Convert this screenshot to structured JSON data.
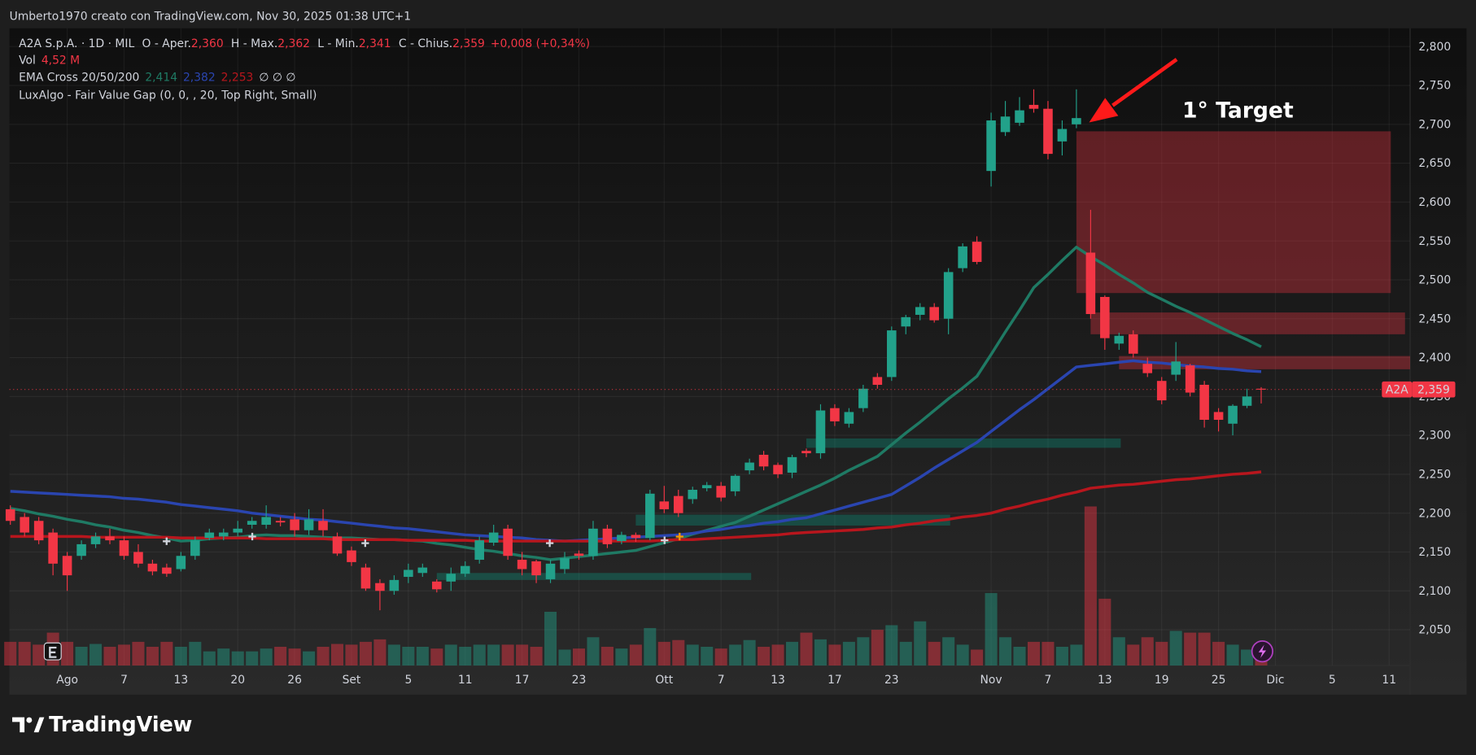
{
  "attribution": "Umberto1970 creato con TradingView.com, Nov 30, 2025 01:38 UTC+1",
  "brand": "TradingView",
  "legend": {
    "symbol": "A2A S.p.A. · 1D · MIL",
    "ohlc": [
      {
        "label": "O - Aper.",
        "value": "2,360"
      },
      {
        "label": "H - Max.",
        "value": "2,362"
      },
      {
        "label": "L - Min.",
        "value": "2,341"
      },
      {
        "label": "C - Chius.",
        "value": "2,359"
      }
    ],
    "change": "+0,008 (+0,34%)",
    "volume_label": "Vol",
    "volume_value": "4,52 M",
    "ema_name": "EMA Cross 20/50/200",
    "ema_values": [
      "2,414",
      "2,382",
      "2,253"
    ],
    "ema_extra": "∅ ∅ ∅",
    "indicator": "LuxAlgo - Fair Value Gap (0, 0, , 20, Top Right, Small)"
  },
  "annotation": "1° Target",
  "price_label": {
    "symbol": "A2A",
    "value": "2,359"
  },
  "chart_data": {
    "type": "candlestick",
    "up_color": "#22a18a",
    "down_color": "#f23645",
    "categories": [
      null,
      null,
      null,
      null,
      "Ago",
      null,
      null,
      null,
      "7",
      null,
      null,
      null,
      "13",
      null,
      null,
      null,
      "20",
      null,
      null,
      null,
      "26",
      null,
      null,
      null,
      "Set",
      null,
      null,
      null,
      "5",
      null,
      null,
      null,
      "11",
      null,
      null,
      null,
      "17",
      null,
      null,
      null,
      "23",
      null,
      null,
      null,
      null,
      null,
      "Ott",
      null,
      null,
      null,
      "7",
      null,
      null,
      null,
      "13",
      null,
      null,
      null,
      "17",
      null,
      null,
      null,
      "23",
      null,
      null,
      null,
      null,
      null,
      null,
      "Nov",
      null,
      null,
      null,
      "7",
      null,
      null,
      null,
      "13",
      null,
      null,
      null,
      "19",
      null,
      null,
      null,
      "25",
      null,
      null,
      null,
      "Dic",
      null,
      null,
      null,
      "5",
      null,
      null,
      null,
      "11",
      null
    ],
    "open": [
      2.205,
      2.195,
      2.19,
      2.175,
      2.145,
      2.145,
      2.16,
      2.17,
      2.165,
      2.15,
      2.135,
      2.13,
      2.128,
      2.145,
      2.168,
      2.17,
      2.175,
      2.185,
      2.185,
      2.19,
      2.192,
      2.178,
      2.19,
      2.17,
      2.152,
      2.13,
      2.11,
      2.1,
      2.118,
      2.123,
      2.112,
      2.112,
      2.122,
      2.14,
      2.162,
      2.18,
      2.14,
      2.138,
      2.115,
      2.128,
      2.148,
      2.145,
      2.18,
      2.164,
      2.172,
      2.168,
      2.215,
      2.222,
      2.218,
      2.232,
      2.235,
      2.228,
      2.255,
      2.275,
      2.262,
      2.252,
      2.28,
      2.277,
      2.335,
      2.315,
      2.335,
      2.375,
      2.375,
      2.44,
      2.455,
      2.465,
      2.45,
      2.515,
      2.549,
      2.64,
      2.69,
      2.702,
      2.725,
      2.72,
      2.678,
      2.7,
      2.535,
      2.478,
      2.418,
      2.43,
      2.392,
      2.37,
      2.378,
      2.39,
      2.365,
      2.33,
      2.315,
      2.338,
      2.36,
      null,
      null,
      null,
      null,
      null,
      null,
      null,
      null,
      null,
      null
    ],
    "high": [
      2.21,
      2.2,
      2.195,
      2.18,
      2.15,
      2.165,
      2.175,
      2.18,
      2.17,
      2.16,
      2.14,
      2.135,
      2.15,
      2.17,
      2.18,
      2.18,
      2.19,
      2.195,
      2.21,
      2.195,
      2.2,
      2.205,
      2.205,
      2.175,
      2.157,
      2.135,
      2.115,
      2.12,
      2.135,
      2.135,
      2.115,
      2.13,
      2.138,
      2.17,
      2.185,
      2.185,
      2.15,
      2.14,
      2.14,
      2.15,
      2.152,
      2.19,
      2.185,
      2.176,
      2.175,
      2.23,
      2.235,
      2.23,
      2.234,
      2.24,
      2.24,
      2.25,
      2.27,
      2.28,
      2.265,
      2.275,
      2.283,
      2.34,
      2.34,
      2.335,
      2.365,
      2.38,
      2.44,
      2.455,
      2.47,
      2.47,
      2.515,
      2.547,
      2.556,
      2.715,
      2.73,
      2.735,
      2.745,
      2.73,
      2.705,
      2.745,
      2.59,
      2.48,
      2.432,
      2.435,
      2.4,
      2.375,
      2.42,
      2.392,
      2.37,
      2.335,
      2.34,
      2.36,
      2.362,
      null,
      null,
      null,
      null,
      null,
      null,
      null,
      null,
      null,
      null
    ],
    "low": [
      2.185,
      2.17,
      2.16,
      2.12,
      2.1,
      2.14,
      2.155,
      2.16,
      2.14,
      2.13,
      2.12,
      2.118,
      2.125,
      2.14,
      2.165,
      2.165,
      2.17,
      2.18,
      2.18,
      2.183,
      2.17,
      2.172,
      2.17,
      2.145,
      2.132,
      2.1,
      2.075,
      2.095,
      2.11,
      2.118,
      2.098,
      2.1,
      2.118,
      2.135,
      2.158,
      2.14,
      2.12,
      2.11,
      2.11,
      2.122,
      2.14,
      2.14,
      2.155,
      2.16,
      2.163,
      2.165,
      2.2,
      2.195,
      2.212,
      2.228,
      2.215,
      2.222,
      2.25,
      2.255,
      2.245,
      2.245,
      2.272,
      2.27,
      2.312,
      2.31,
      2.33,
      2.36,
      2.37,
      2.43,
      2.448,
      2.445,
      2.43,
      2.51,
      2.52,
      2.62,
      2.685,
      2.698,
      2.715,
      2.655,
      2.66,
      2.695,
      2.45,
      2.41,
      2.41,
      2.4,
      2.375,
      2.34,
      2.37,
      2.35,
      2.31,
      2.305,
      2.3,
      2.335,
      2.341,
      null,
      null,
      null,
      null,
      null,
      null,
      null,
      null,
      null,
      null
    ],
    "close": [
      2.19,
      2.175,
      2.165,
      2.135,
      2.12,
      2.16,
      2.17,
      2.165,
      2.145,
      2.135,
      2.125,
      2.122,
      2.145,
      2.165,
      2.175,
      2.175,
      2.18,
      2.19,
      2.195,
      2.188,
      2.178,
      2.192,
      2.178,
      2.148,
      2.137,
      2.103,
      2.1,
      2.114,
      2.127,
      2.13,
      2.102,
      2.122,
      2.132,
      2.165,
      2.175,
      2.145,
      2.128,
      2.12,
      2.135,
      2.142,
      2.145,
      2.18,
      2.16,
      2.172,
      2.168,
      2.225,
      2.205,
      2.2,
      2.23,
      2.236,
      2.22,
      2.248,
      2.265,
      2.26,
      2.25,
      2.272,
      2.277,
      2.332,
      2.318,
      2.33,
      2.36,
      2.365,
      2.435,
      2.452,
      2.465,
      2.448,
      2.51,
      2.543,
      2.523,
      2.705,
      2.71,
      2.718,
      2.72,
      2.662,
      2.694,
      2.708,
      2.456,
      2.425,
      2.428,
      2.405,
      2.38,
      2.345,
      2.395,
      2.355,
      2.32,
      2.32,
      2.338,
      2.35,
      2.359,
      null,
      null,
      null,
      null,
      null,
      null,
      null,
      null,
      null,
      null
    ],
    "volume": [
      6.7,
      6.7,
      5.9,
      9.3,
      6.7,
      5.3,
      6.1,
      5.3,
      5.9,
      6.7,
      5.3,
      6.7,
      5.3,
      6.7,
      4.0,
      4.8,
      4.0,
      4.0,
      4.8,
      5.3,
      4.8,
      4.0,
      5.3,
      6.1,
      5.9,
      6.7,
      7.4,
      5.9,
      5.3,
      5.3,
      4.8,
      5.9,
      5.3,
      5.9,
      5.9,
      5.9,
      5.9,
      5.3,
      15.2,
      4.5,
      4.8,
      8.0,
      5.3,
      4.8,
      5.9,
      10.6,
      6.7,
      7.2,
      5.9,
      5.3,
      4.8,
      5.9,
      7.2,
      5.3,
      5.9,
      6.7,
      9.3,
      7.4,
      5.9,
      6.7,
      8.0,
      10.1,
      11.4,
      6.7,
      12.5,
      6.7,
      8.0,
      5.9,
      4.5,
      20.5,
      8.0,
      5.3,
      6.7,
      6.7,
      5.3,
      5.9,
      45.0,
      18.9,
      8.0,
      5.9,
      8.0,
      6.7,
      9.8,
      9.3,
      9.3,
      6.7,
      5.9,
      4.5,
      4.52,
      null,
      null,
      null,
      null,
      null,
      null,
      null,
      null,
      null,
      null
    ],
    "series": [
      {
        "color": "#1f7a64",
        "values": [
          2.206,
          2.203,
          2.199,
          2.196,
          2.192,
          2.189,
          2.185,
          2.182,
          2.178,
          2.175,
          2.171,
          2.168,
          2.164,
          2.165,
          2.167,
          2.168,
          2.169,
          2.171,
          2.172,
          2.171,
          2.171,
          2.17,
          2.169,
          2.168,
          2.168,
          2.167,
          2.166,
          2.166,
          2.165,
          2.164,
          2.161,
          2.159,
          2.156,
          2.153,
          2.151,
          2.148,
          2.145,
          2.143,
          2.14,
          2.142,
          2.144,
          2.146,
          2.148,
          2.15,
          2.152,
          2.157,
          2.162,
          2.167,
          2.173,
          2.178,
          2.183,
          2.188,
          2.196,
          2.204,
          2.212,
          2.22,
          2.228,
          2.236,
          2.245,
          2.255,
          2.264,
          2.273,
          2.288,
          2.303,
          2.317,
          2.332,
          2.347,
          2.361,
          2.376,
          2.404,
          2.433,
          2.461,
          2.49,
          2.507,
          2.525,
          2.542,
          2.53,
          2.519,
          2.507,
          2.496,
          2.484,
          2.475,
          2.466,
          2.458,
          2.449,
          2.44,
          2.431,
          2.423,
          2.414,
          null,
          null,
          null,
          null,
          null,
          null,
          null,
          null,
          null,
          null
        ]
      },
      {
        "color": "#2a45b0",
        "values": [
          2.228,
          2.227,
          2.226,
          2.225,
          2.224,
          2.223,
          2.222,
          2.221,
          2.219,
          2.218,
          2.216,
          2.214,
          2.211,
          2.209,
          2.207,
          2.205,
          2.203,
          2.2,
          2.198,
          2.196,
          2.194,
          2.192,
          2.191,
          2.189,
          2.187,
          2.185,
          2.183,
          2.181,
          2.18,
          2.178,
          2.176,
          2.174,
          2.172,
          2.171,
          2.17,
          2.169,
          2.168,
          2.166,
          2.165,
          2.164,
          2.165,
          2.166,
          2.167,
          2.168,
          2.169,
          2.17,
          2.171,
          2.172,
          2.174,
          2.177,
          2.179,
          2.182,
          2.184,
          2.187,
          2.189,
          2.192,
          2.194,
          2.199,
          2.204,
          2.209,
          2.214,
          2.219,
          2.224,
          2.235,
          2.246,
          2.258,
          2.269,
          2.28,
          2.291,
          2.305,
          2.319,
          2.333,
          2.346,
          2.36,
          2.374,
          2.388,
          2.39,
          2.392,
          2.394,
          2.396,
          2.394,
          2.393,
          2.391,
          2.389,
          2.388,
          2.386,
          2.385,
          2.383,
          2.382,
          null,
          null,
          null,
          null,
          null,
          null,
          null,
          null,
          null,
          null
        ]
      },
      {
        "color": "#b8161d",
        "values": [
          2.17,
          2.17,
          2.17,
          2.17,
          2.17,
          2.17,
          2.169,
          2.169,
          2.169,
          2.169,
          2.169,
          2.169,
          2.168,
          2.168,
          2.168,
          2.168,
          2.168,
          2.168,
          2.167,
          2.167,
          2.167,
          2.167,
          2.167,
          2.166,
          2.166,
          2.166,
          2.166,
          2.166,
          2.165,
          2.165,
          2.165,
          2.165,
          2.165,
          2.164,
          2.164,
          2.164,
          2.164,
          2.164,
          2.164,
          2.164,
          2.164,
          2.164,
          2.164,
          2.164,
          2.164,
          2.164,
          2.165,
          2.166,
          2.166,
          2.167,
          2.168,
          2.169,
          2.17,
          2.171,
          2.172,
          2.174,
          2.175,
          2.176,
          2.177,
          2.178,
          2.179,
          2.181,
          2.182,
          2.185,
          2.187,
          2.19,
          2.192,
          2.195,
          2.197,
          2.2,
          2.205,
          2.209,
          2.214,
          2.218,
          2.223,
          2.227,
          2.232,
          2.234,
          2.236,
          2.237,
          2.239,
          2.241,
          2.243,
          2.244,
          2.246,
          2.248,
          2.25,
          2.251,
          2.253,
          null,
          null,
          null,
          null,
          null,
          null,
          null,
          null,
          null,
          null
        ]
      }
    ],
    "fair_value_gaps": [
      {
        "low": 2.483,
        "high": 2.691,
        "color": "#f23645"
      },
      {
        "low": 2.43,
        "high": 2.458,
        "color": "#f23645"
      },
      {
        "low": 2.385,
        "high": 2.402,
        "color": "#f23645"
      },
      {
        "low": 2.284,
        "high": 2.296,
        "color": "#089981"
      },
      {
        "low": 2.184,
        "high": 2.198,
        "color": "#089981"
      },
      {
        "low": 2.114,
        "high": 2.123,
        "color": "#089981"
      }
    ],
    "ylim": [
      2.004,
      2.815
    ],
    "yticks": [
      {
        "value": 2.05,
        "label": "2,050"
      },
      {
        "value": 2.1,
        "label": "2,100"
      },
      {
        "value": 2.15,
        "label": "2,150"
      },
      {
        "value": 2.2,
        "label": "2,200"
      },
      {
        "value": 2.25,
        "label": "2,250"
      },
      {
        "value": 2.3,
        "label": "2,300"
      },
      {
        "value": 2.35,
        "label": "2,350"
      },
      {
        "value": 2.4,
        "label": "2,400"
      },
      {
        "value": 2.45,
        "label": "2,450"
      },
      {
        "value": 2.5,
        "label": "2,500"
      },
      {
        "value": 2.55,
        "label": "2,550"
      },
      {
        "value": 2.6,
        "label": "2,600"
      },
      {
        "value": 2.65,
        "label": "2,650"
      },
      {
        "value": 2.7,
        "label": "2,700"
      },
      {
        "value": 2.75,
        "label": "2,750"
      },
      {
        "value": 2.8,
        "label": "2,800"
      }
    ],
    "grid": true
  }
}
